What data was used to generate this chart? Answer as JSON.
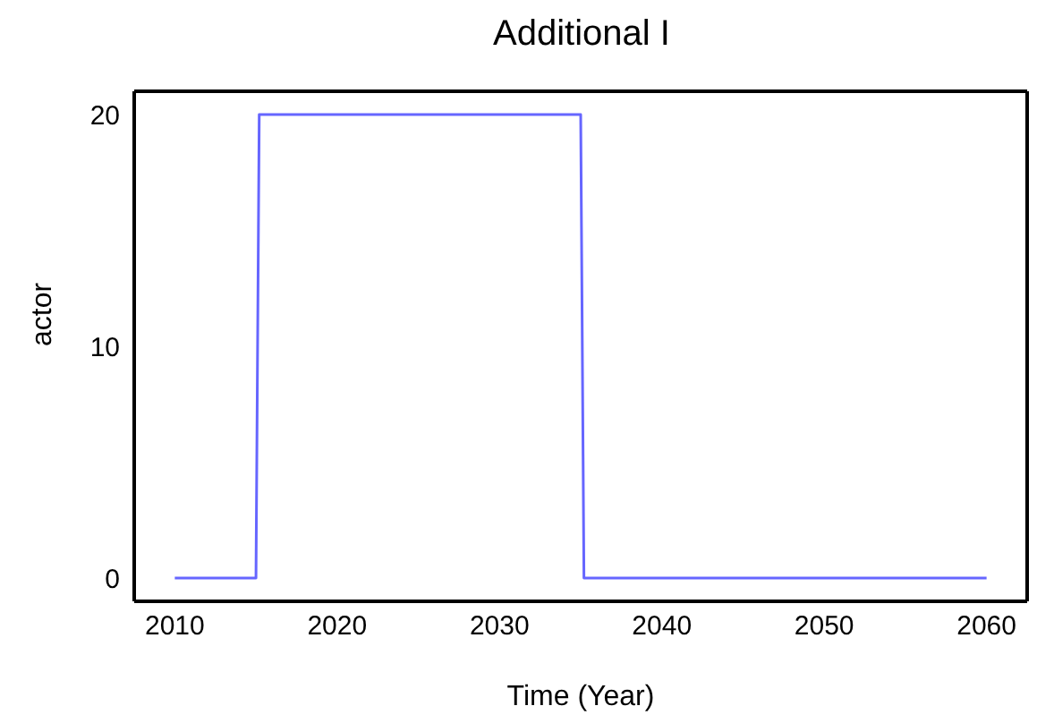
{
  "chart_data": {
    "type": "line",
    "title": "Additional I",
    "xlabel": "Time (Year)",
    "ylabel": "actor",
    "x": [
      2010,
      2015,
      2015.2,
      2035,
      2035.2,
      2060
    ],
    "series": [
      {
        "color": "#6666ff",
        "values": [
          0,
          0,
          20,
          20,
          0,
          0
        ]
      }
    ],
    "xlim": [
      2007.5,
      2062.5
    ],
    "xticks": [
      2010,
      2020,
      2030,
      2040,
      2050,
      2060
    ],
    "ylim": [
      -1,
      21
    ],
    "yticks": [
      0,
      10,
      20
    ],
    "grid": false,
    "legend": false,
    "marker": "none",
    "line_style": "solid"
  }
}
